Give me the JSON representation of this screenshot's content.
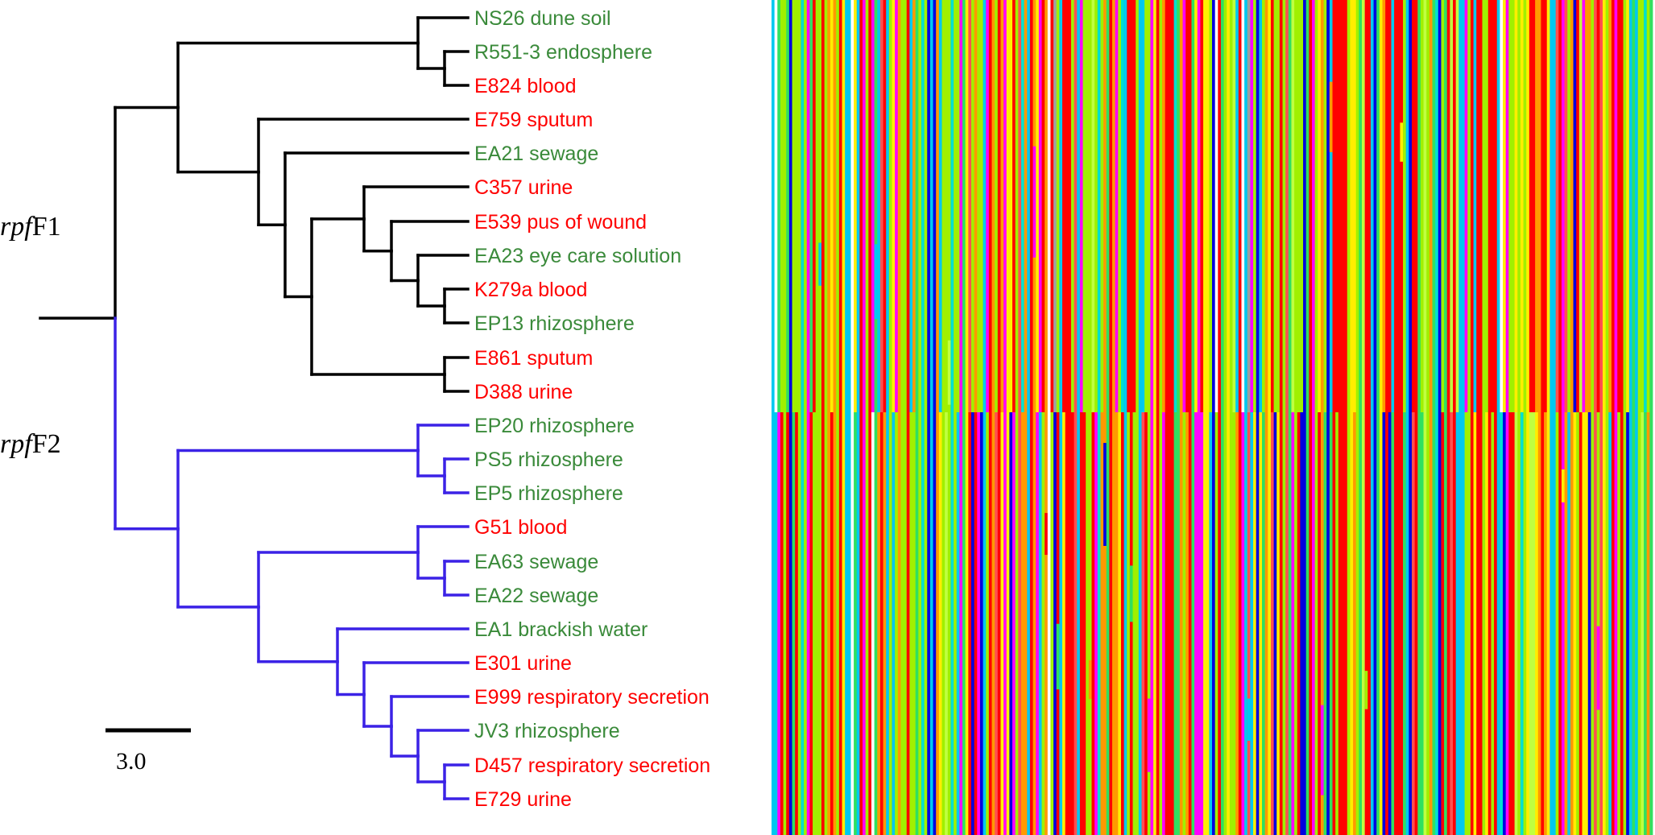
{
  "colors": {
    "clinical": "#ff0000",
    "environmental": "#3a8a3a",
    "clade1": "#000000",
    "clade2": "#3b22e6"
  },
  "groups": {
    "g1_prefix": "rpf",
    "g1_suffix": "F1",
    "g2_prefix": "rpf",
    "g2_suffix": "F2"
  },
  "scale": {
    "label": "3.0",
    "value": 3.0
  },
  "taxa": [
    {
      "label": "NS26 dune soil",
      "type": "environmental",
      "clade": 1
    },
    {
      "label": "R551-3 endosphere",
      "type": "environmental",
      "clade": 1
    },
    {
      "label": "E824 blood",
      "type": "clinical",
      "clade": 1
    },
    {
      "label": "E759 sputum",
      "type": "clinical",
      "clade": 1
    },
    {
      "label": "EA21 sewage",
      "type": "environmental",
      "clade": 1
    },
    {
      "label": "C357 urine",
      "type": "clinical",
      "clade": 1
    },
    {
      "label": "E539 pus of wound",
      "type": "clinical",
      "clade": 1
    },
    {
      "label": "EA23 eye care solution",
      "type": "environmental",
      "clade": 1
    },
    {
      "label": "K279a blood",
      "type": "clinical",
      "clade": 1
    },
    {
      "label": "EP13 rhizosphere",
      "type": "environmental",
      "clade": 1
    },
    {
      "label": "E861 sputum",
      "type": "clinical",
      "clade": 1
    },
    {
      "label": "D388 urine",
      "type": "clinical",
      "clade": 1
    },
    {
      "label": "EP20 rhizosphere",
      "type": "environmental",
      "clade": 2
    },
    {
      "label": "PS5 rhizosphere",
      "type": "environmental",
      "clade": 2
    },
    {
      "label": "EP5 rhizosphere",
      "type": "environmental",
      "clade": 2
    },
    {
      "label": "G51 blood",
      "type": "clinical",
      "clade": 2
    },
    {
      "label": "EA63 sewage",
      "type": "environmental",
      "clade": 2
    },
    {
      "label": "EA22 sewage",
      "type": "environmental",
      "clade": 2
    },
    {
      "label": "EA1 brackish water",
      "type": "environmental",
      "clade": 2
    },
    {
      "label": "E301 urine",
      "type": "clinical",
      "clade": 2
    },
    {
      "label": "E999 respiratory secretion",
      "type": "clinical",
      "clade": 2
    },
    {
      "label": "JV3 rhizosphere",
      "type": "environmental",
      "clade": 2
    },
    {
      "label": "D457 respiratory secretion",
      "type": "clinical",
      "clade": 2
    },
    {
      "label": "E729 urine",
      "type": "clinical",
      "clade": 2
    }
  ],
  "alignment": {
    "palette": [
      "#ff0000",
      "#a0f000",
      "#ff9900",
      "#ffee00",
      "#00c8f0",
      "#0000e0",
      "#ff00ff",
      "#30e060",
      "#ff5050",
      "#c0ff40",
      "#00e0d0",
      "#a0a0a0",
      "#ffffff"
    ],
    "columns": 300
  }
}
